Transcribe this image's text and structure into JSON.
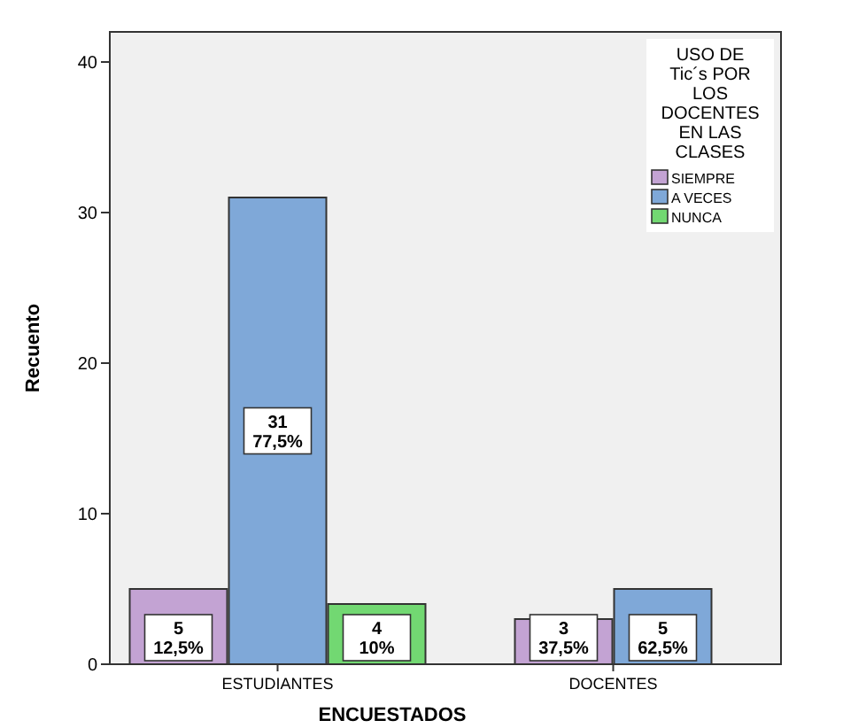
{
  "chart_data": {
    "type": "bar",
    "xlabel": "ENCUESTADOS",
    "ylabel": "Recuento",
    "legend_title": "USO DE Tic´s POR LOS DOCENTES EN LAS CLASES",
    "legend": "top right",
    "categories": [
      "ESTUDIANTES",
      "DOCENTES"
    ],
    "ylim": [
      0,
      42
    ],
    "yticks": [
      0,
      10,
      20,
      30,
      40
    ],
    "grid": false,
    "series": [
      {
        "name": "SIEMPRE",
        "color": "#c3a3d3",
        "values": [
          5,
          3
        ],
        "value_labels": [
          "5\n12,5%",
          "3\n37,5%"
        ]
      },
      {
        "name": "A VECES",
        "color": "#7fa8d8",
        "values": [
          31,
          5
        ],
        "value_labels": [
          "31\n77,5%",
          "5\n62,5%"
        ]
      },
      {
        "name": "NUNCA",
        "color": "#72d872",
        "values": [
          4,
          null
        ],
        "value_labels": [
          "4\n10%",
          null
        ]
      }
    ]
  }
}
